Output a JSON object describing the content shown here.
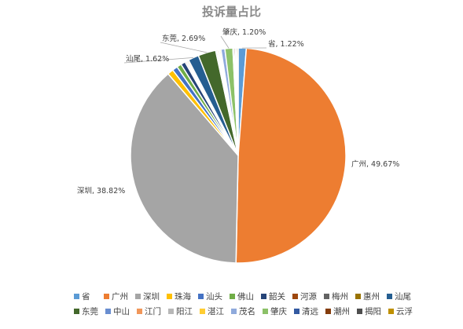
{
  "chart_data": {
    "type": "pie",
    "title": "投诉量占比",
    "slices": [
      {
        "name": "省",
        "value": 1.22,
        "color": "#5b9bd5",
        "label": "省, 1.22%"
      },
      {
        "name": "广州",
        "value": 49.67,
        "color": "#ed7d31",
        "label": "广州, 49.67%"
      },
      {
        "name": "深圳",
        "value": 38.82,
        "color": "#a5a5a5",
        "label": "深圳, 38.82%"
      },
      {
        "name": "珠海",
        "value": 0.9,
        "color": "#ffc000",
        "label": ""
      },
      {
        "name": "汕头",
        "value": 0.8,
        "color": "#4472c4",
        "label": ""
      },
      {
        "name": "佛山",
        "value": 0.7,
        "color": "#70ad47",
        "label": ""
      },
      {
        "name": "韶关",
        "value": 0.7,
        "color": "#264478",
        "label": ""
      },
      {
        "name": "河源",
        "value": 0.2,
        "color": "#9e480e",
        "label": ""
      },
      {
        "name": "梅州",
        "value": 0.2,
        "color": "#636363",
        "label": ""
      },
      {
        "name": "惠州",
        "value": 0.2,
        "color": "#997300",
        "label": ""
      },
      {
        "name": "汕尾",
        "value": 1.62,
        "color": "#255e91",
        "label": "汕尾, 1.62%"
      },
      {
        "name": "东莞",
        "value": 2.69,
        "color": "#43682b",
        "label": "东莞, 2.69%"
      },
      {
        "name": "中山",
        "value": 0.2,
        "color": "#698ed0",
        "label": ""
      },
      {
        "name": "江门",
        "value": 0.2,
        "color": "#f1975a",
        "label": ""
      },
      {
        "name": "阳江",
        "value": 0.2,
        "color": "#b7b7b7",
        "label": ""
      },
      {
        "name": "湛江",
        "value": 0.2,
        "color": "#ffcd33",
        "label": ""
      },
      {
        "name": "茂名",
        "value": 0.6,
        "color": "#8faadc",
        "label": ""
      },
      {
        "name": "肇庆",
        "value": 1.2,
        "color": "#8cc168",
        "label": "肇庆, 1.20%"
      },
      {
        "name": "清远",
        "value": 0.2,
        "color": "#335aa1",
        "label": ""
      },
      {
        "name": "潮州",
        "value": 0.2,
        "color": "#843c0c",
        "label": ""
      },
      {
        "name": "揭阳",
        "value": 0.2,
        "color": "#4e4e4e",
        "label": ""
      },
      {
        "name": "云浮",
        "value": 0.2,
        "color": "#bf9000",
        "label": ""
      }
    ],
    "legend_position": "bottom"
  }
}
